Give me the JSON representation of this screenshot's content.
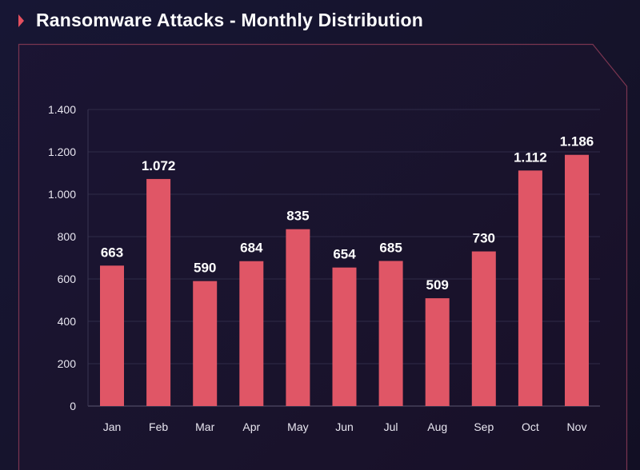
{
  "chart_data": {
    "type": "bar",
    "title": "Ransomware Attacks - Monthly Distribution",
    "categories": [
      "Jan",
      "Feb",
      "Mar",
      "Apr",
      "May",
      "Jun",
      "Jul",
      "Aug",
      "Sep",
      "Oct",
      "Nov"
    ],
    "values": [
      663,
      1072,
      590,
      684,
      835,
      654,
      685,
      509,
      730,
      1112,
      1186
    ],
    "value_labels": [
      "663",
      "1.072",
      "590",
      "684",
      "835",
      "654",
      "685",
      "509",
      "730",
      "1.112",
      "1.186"
    ],
    "yticks": [
      0,
      200,
      400,
      600,
      800,
      1000,
      1200,
      1400
    ],
    "ytick_labels": [
      "0",
      "200",
      "400",
      "600",
      "800",
      "1.000",
      "1.200",
      "1.400"
    ],
    "ylim": [
      0,
      1400
    ],
    "xlabel": "",
    "ylabel": "",
    "grid": true,
    "colors": {
      "bar": "#e05666",
      "accent": "#e5505f",
      "border": "#7a3550"
    }
  }
}
